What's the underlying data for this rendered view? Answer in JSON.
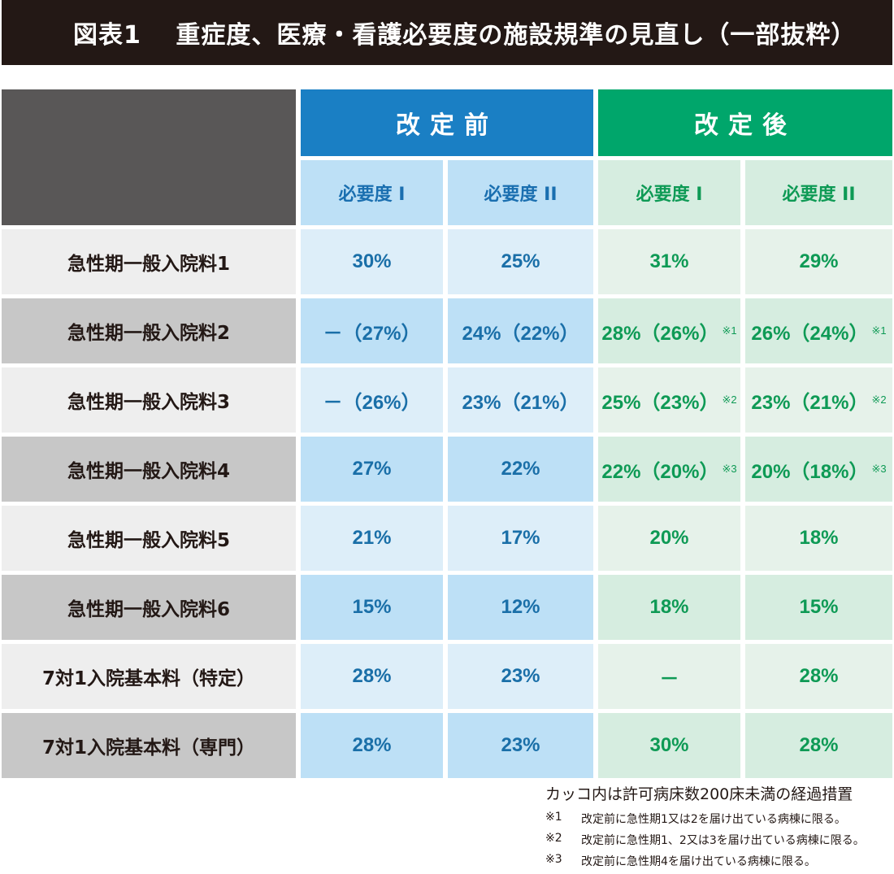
{
  "title": "図表1　 重症度、医療・看護必要度の施設規準の見直し（一部抜粋）",
  "groups": {
    "before": "改定前",
    "after": "改定後"
  },
  "subheaders": {
    "before_1": "必要度 I",
    "before_2": "必要度 II",
    "after_1": "必要度 I",
    "after_2": "必要度 II"
  },
  "rows": [
    {
      "label": "急性期一般入院料1",
      "before_1": "30%",
      "before_2": "25%",
      "after_1": "31%",
      "after_1_note": "",
      "after_2": "29%",
      "after_2_note": ""
    },
    {
      "label": "急性期一般入院料2",
      "before_1": "－（27%）",
      "before_2": "24%（22%）",
      "after_1": "28%（26%）",
      "after_1_note": "※1",
      "after_2": "26%（24%）",
      "after_2_note": "※1"
    },
    {
      "label": "急性期一般入院料3",
      "before_1": "－（26%）",
      "before_2": "23%（21%）",
      "after_1": "25%（23%）",
      "after_1_note": "※2",
      "after_2": "23%（21%）",
      "after_2_note": "※2"
    },
    {
      "label": "急性期一般入院料4",
      "before_1": "27%",
      "before_2": "22%",
      "after_1": "22%（20%）",
      "after_1_note": "※3",
      "after_2": "20%（18%）",
      "after_2_note": "※3"
    },
    {
      "label": "急性期一般入院料5",
      "before_1": "21%",
      "before_2": "17%",
      "after_1": "20%",
      "after_1_note": "",
      "after_2": "18%",
      "after_2_note": ""
    },
    {
      "label": "急性期一般入院料6",
      "before_1": "15%",
      "before_2": "12%",
      "after_1": "18%",
      "after_1_note": "",
      "after_2": "15%",
      "after_2_note": ""
    },
    {
      "label": "7対1入院基本料（特定）",
      "before_1": "28%",
      "before_2": "23%",
      "after_1": "－",
      "after_1_note": "",
      "after_2": "28%",
      "after_2_note": ""
    },
    {
      "label": "7対1入院基本料（専門）",
      "before_1": "28%",
      "before_2": "23%",
      "after_1": "30%",
      "after_1_note": "",
      "after_2": "28%",
      "after_2_note": ""
    }
  ],
  "notes": {
    "main": "カッコ内は許可病床数200床未満の経過措置",
    "items": [
      {
        "mark": "※1",
        "text": "改定前に急性期1又は2を届け出ている病棟に限る。"
      },
      {
        "mark": "※2",
        "text": "改定前に急性期1、2又は3を届け出ている病棟に限る。"
      },
      {
        "mark": "※3",
        "text": "改定前に急性期4を届け出ている病棟に限る。"
      }
    ]
  },
  "colors": {
    "title_bg": "#231815",
    "before_header": "#1a7fc4",
    "after_header": "#00a66b",
    "before_text": "#1a6fa8",
    "after_text": "#0e9a55"
  }
}
